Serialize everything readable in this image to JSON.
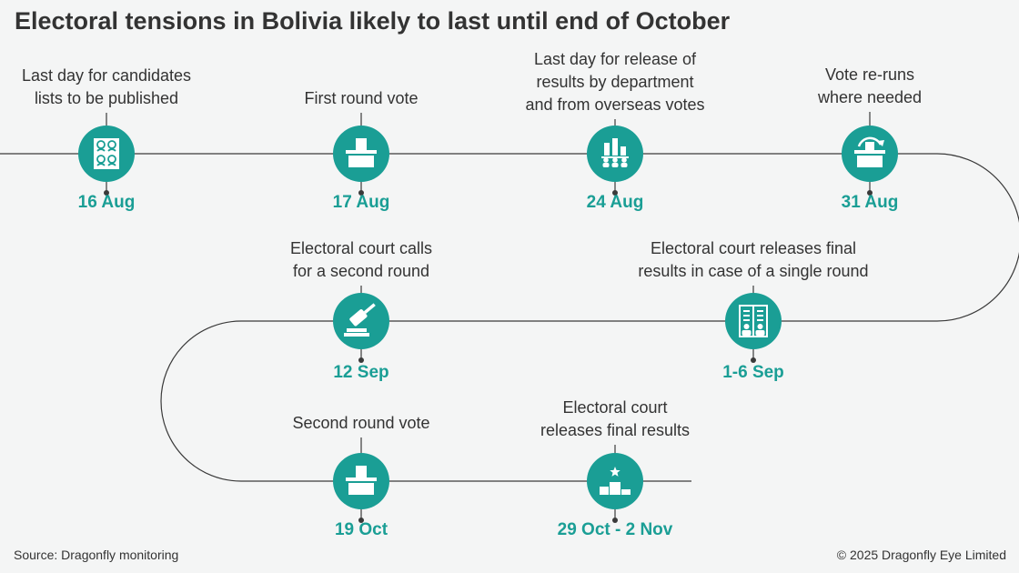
{
  "title": "Electoral tensions in Bolivia likely to last until end of October",
  "colors": {
    "accent": "#1a9e95",
    "line": "#3a3a3a",
    "background": "#f4f5f5"
  },
  "events": [
    {
      "id": "ev1",
      "lines": [
        "Last day for candidates",
        "lists to be published"
      ],
      "date": "16 Aug",
      "icon": "candidate-list-icon"
    },
    {
      "id": "ev2",
      "lines": [
        "First round vote"
      ],
      "date": "17 Aug",
      "icon": "ballot-box-icon"
    },
    {
      "id": "ev3",
      "lines": [
        "Last day for release of",
        "results by department",
        "and from overseas votes"
      ],
      "date": "24 Aug",
      "icon": "results-bar-chart-icon"
    },
    {
      "id": "ev4",
      "lines": [
        "Vote re-runs",
        "where needed"
      ],
      "date": "31 Aug",
      "icon": "ballot-rerun-icon"
    },
    {
      "id": "ev5",
      "lines": [
        "Electoral court releases final",
        "results in case of a single round"
      ],
      "date": "1-6 Sep",
      "icon": "final-results-document-icon"
    },
    {
      "id": "ev6",
      "lines": [
        "Electoral court calls",
        "for a second round"
      ],
      "date": "12 Sep",
      "icon": "gavel-icon"
    },
    {
      "id": "ev7",
      "lines": [
        "Second round vote"
      ],
      "date": "19 Oct",
      "icon": "ballot-box-icon"
    },
    {
      "id": "ev8",
      "lines": [
        "Electoral court",
        "releases final results"
      ],
      "date": "29 Oct - 2 Nov",
      "icon": "winner-podium-icon"
    }
  ],
  "footer": {
    "source": "Source: Dragonfly monitoring",
    "copyright": "© 2025 Dragonfly Eye Limited"
  }
}
